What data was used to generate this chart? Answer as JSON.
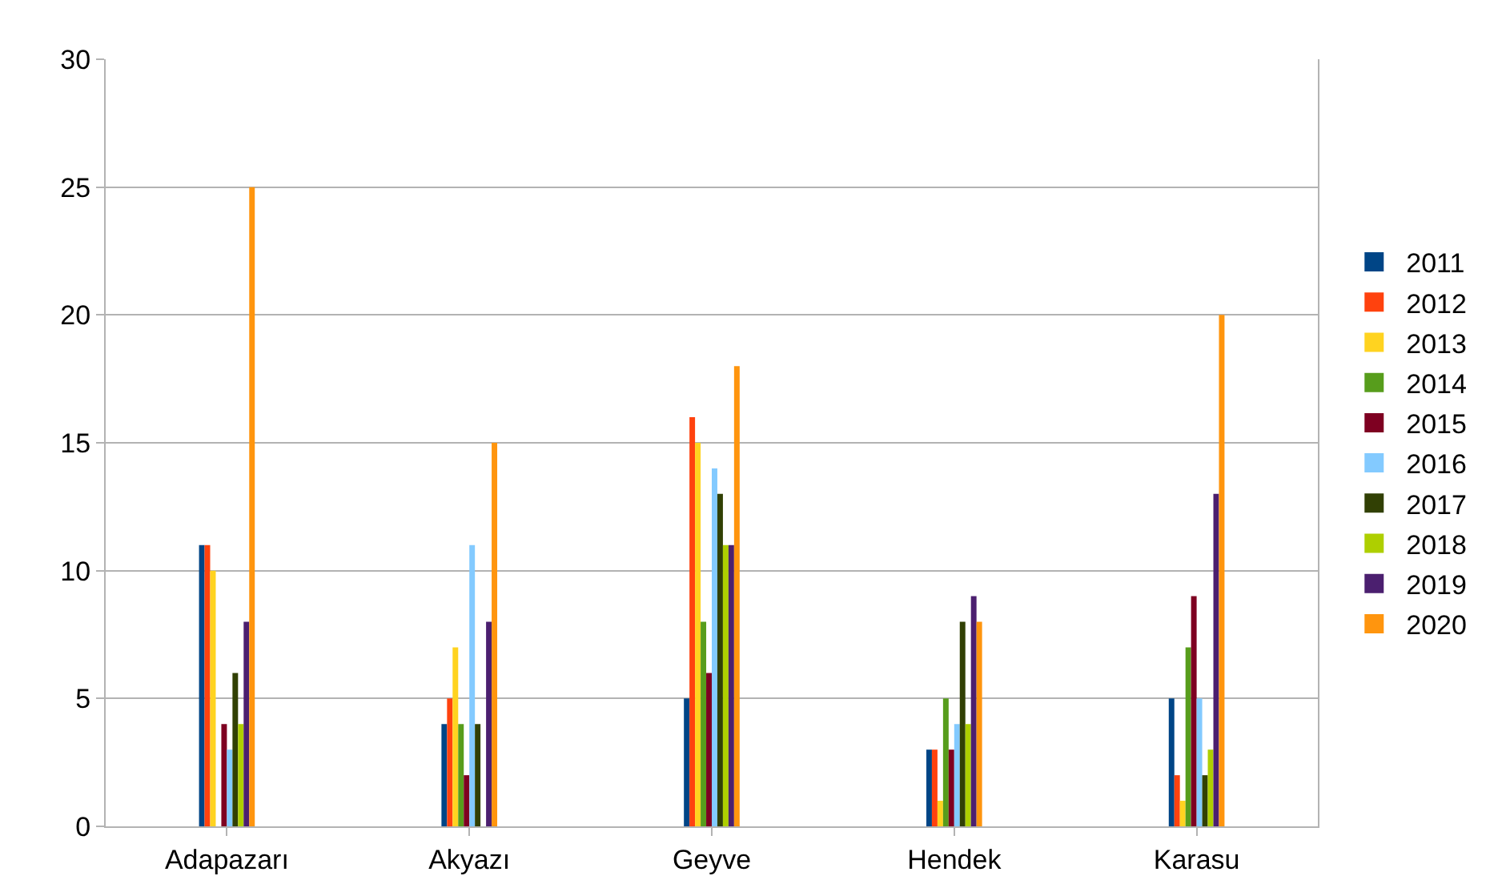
{
  "chart_data": {
    "type": "bar",
    "categories": [
      "Adapazarı",
      "Akyazı",
      "Geyve",
      "Hendek",
      "Karasu"
    ],
    "series": [
      {
        "name": "2011",
        "color": "#004586",
        "values": [
          11,
          4,
          5,
          3,
          5
        ]
      },
      {
        "name": "2012",
        "color": "#ff420e",
        "values": [
          11,
          5,
          16,
          3,
          2
        ]
      },
      {
        "name": "2013",
        "color": "#ffd320",
        "values": [
          10,
          7,
          15,
          1,
          1
        ]
      },
      {
        "name": "2014",
        "color": "#579d1c",
        "values": [
          0,
          4,
          8,
          5,
          7
        ]
      },
      {
        "name": "2015",
        "color": "#7e0021",
        "values": [
          4,
          2,
          6,
          3,
          9
        ]
      },
      {
        "name": "2016",
        "color": "#83caff",
        "values": [
          3,
          11,
          14,
          4,
          5
        ]
      },
      {
        "name": "2017",
        "color": "#314004",
        "values": [
          6,
          4,
          13,
          8,
          2
        ]
      },
      {
        "name": "2018",
        "color": "#aecf00",
        "values": [
          4,
          0,
          11,
          4,
          3
        ]
      },
      {
        "name": "2019",
        "color": "#4b1f6f",
        "values": [
          8,
          8,
          11,
          9,
          13
        ]
      },
      {
        "name": "2020",
        "color": "#ff950e",
        "values": [
          25,
          15,
          18,
          8,
          20
        ]
      }
    ],
    "ylim": [
      0,
      30
    ],
    "yticks": [
      0,
      5,
      10,
      15,
      20,
      25,
      30
    ],
    "grid": "y",
    "legend": "right"
  }
}
